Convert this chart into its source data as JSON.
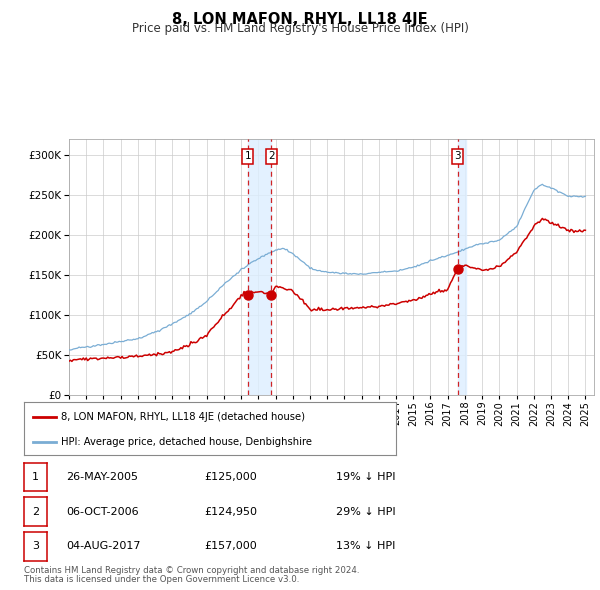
{
  "title": "8, LON MAFON, RHYL, LL18 4JE",
  "subtitle": "Price paid vs. HM Land Registry's House Price Index (HPI)",
  "legend_line1": "8, LON MAFON, RHYL, LL18 4JE (detached house)",
  "legend_line2": "HPI: Average price, detached house, Denbighshire",
  "transactions": [
    {
      "num": 1,
      "date": "26-MAY-2005",
      "price": 125000,
      "pct": "19%",
      "dir": "↓"
    },
    {
      "num": 2,
      "date": "06-OCT-2006",
      "price": 124950,
      "pct": "29%",
      "dir": "↓"
    },
    {
      "num": 3,
      "date": "04-AUG-2017",
      "price": 157000,
      "pct": "13%",
      "dir": "↓"
    }
  ],
  "transaction_dates_decimal": [
    2005.39,
    2006.76,
    2017.59
  ],
  "transaction_prices": [
    125000,
    124950,
    157000
  ],
  "footnote1": "Contains HM Land Registry data © Crown copyright and database right 2024.",
  "footnote2": "This data is licensed under the Open Government Licence v3.0.",
  "hpi_color": "#7aadd4",
  "property_color": "#cc0000",
  "point_color": "#cc0000",
  "vline_color": "#cc0000",
  "shade_color": "#ddeeff",
  "grid_color": "#cccccc",
  "bg_color": "#ffffff",
  "ylim": [
    0,
    320000
  ],
  "xlim_start": 1995.0,
  "xlim_end": 2025.5,
  "hpi_key_years": [
    1995,
    1996,
    1997,
    1998,
    1999,
    2000,
    2001,
    2002,
    2003,
    2004,
    2005,
    2006,
    2007,
    2007.5,
    2008,
    2009,
    2009.5,
    2010,
    2011,
    2012,
    2013,
    2014,
    2015,
    2016,
    2017,
    2018,
    2019,
    2020,
    2021,
    2022,
    2022.5,
    2023,
    2024,
    2025
  ],
  "hpi_key_vals": [
    57000,
    60000,
    64000,
    68000,
    72000,
    80000,
    90000,
    102000,
    118000,
    140000,
    158000,
    172000,
    183000,
    185000,
    178000,
    160000,
    156000,
    154000,
    153000,
    152000,
    153000,
    155000,
    160000,
    167000,
    175000,
    183000,
    190000,
    194000,
    210000,
    255000,
    262000,
    258000,
    248000,
    248000
  ],
  "prop_key_years": [
    1995,
    1996,
    1997,
    1998,
    1999,
    2000,
    2001,
    2002,
    2003,
    2004,
    2005,
    2005.4,
    2006,
    2006.76,
    2007,
    2008,
    2009,
    2010,
    2011,
    2012,
    2013,
    2014,
    2015,
    2016,
    2017,
    2017.6,
    2018,
    2019,
    2020,
    2021,
    2022,
    2022.5,
    2023,
    2024,
    2025
  ],
  "prop_key_vals": [
    44000,
    44500,
    46000,
    47000,
    48500,
    50000,
    54000,
    62000,
    74000,
    98000,
    122000,
    125000,
    127000,
    125000,
    135000,
    128000,
    106000,
    104000,
    107000,
    107000,
    109000,
    112000,
    116000,
    124000,
    130000,
    157000,
    160000,
    155000,
    160000,
    178000,
    210000,
    220000,
    215000,
    205000,
    205000
  ]
}
